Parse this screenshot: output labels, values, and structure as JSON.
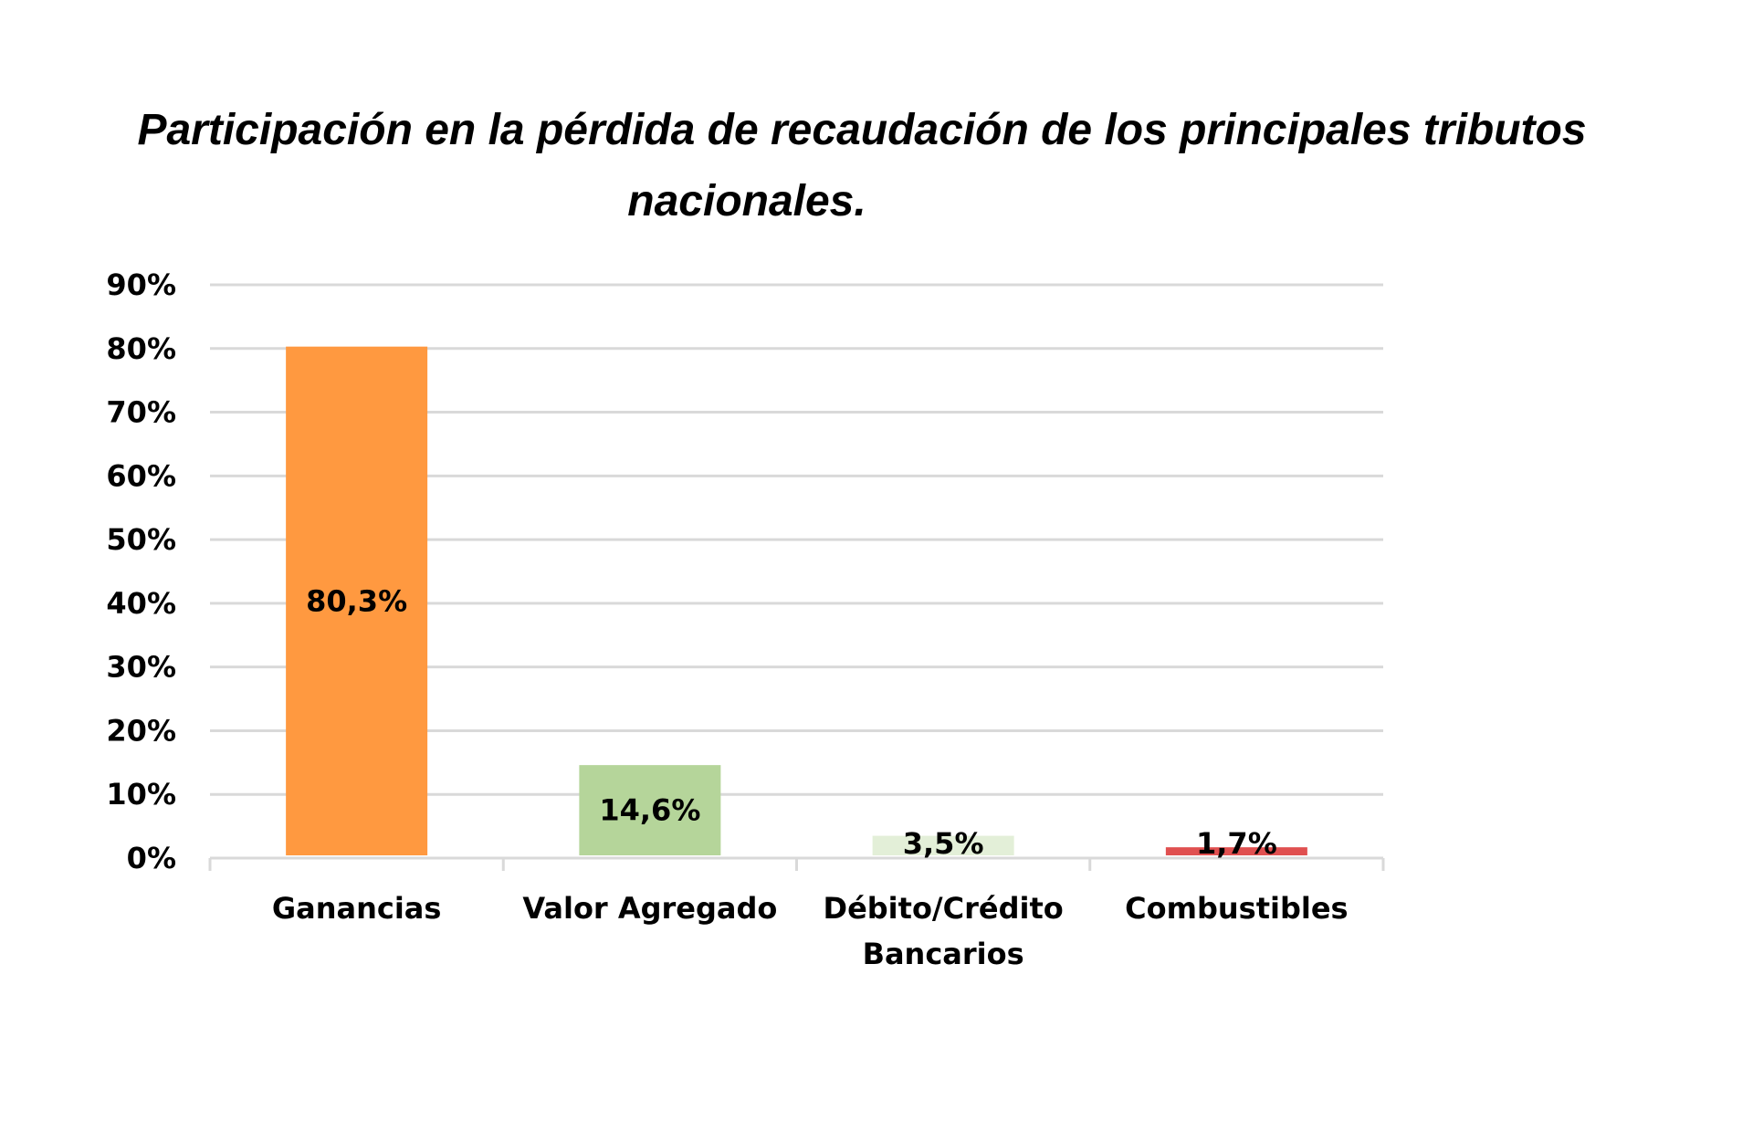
{
  "chart_data": {
    "type": "bar",
    "title_lines": [
      "Participación en la pérdida de recaudación de los principales tributos",
      "nacionales."
    ],
    "categories": [
      [
        "Ganancias"
      ],
      [
        "Valor Agregado"
      ],
      [
        "Débito/Crédito",
        "Bancarios"
      ],
      [
        "Combustibles"
      ]
    ],
    "values": [
      80.3,
      14.6,
      3.5,
      1.7
    ],
    "data_labels": [
      "80,3%",
      "14,6%",
      "3,5%",
      "1,7%"
    ],
    "colors": [
      "#FF9940",
      "#B5D59A",
      "#E3EFD8",
      "#E05050"
    ],
    "ylim": [
      0,
      90
    ],
    "yticks": [
      0,
      10,
      20,
      30,
      40,
      50,
      60,
      70,
      80,
      90
    ],
    "ytick_labels": [
      "0%",
      "10%",
      "20%",
      "30%",
      "40%",
      "50%",
      "60%",
      "70%",
      "80%",
      "90%"
    ],
    "grid": true,
    "legend": "none"
  }
}
